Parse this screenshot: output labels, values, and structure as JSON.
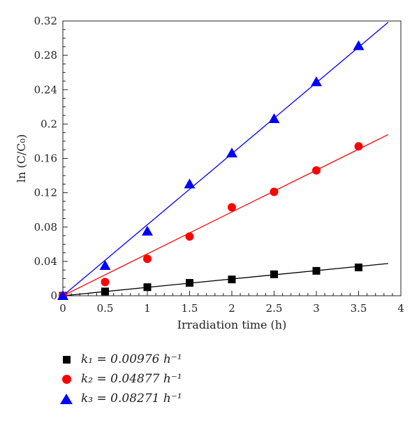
{
  "chart_data": {
    "type": "scatter",
    "xlabel": "Irradiation time (h)",
    "ylabel": "ln (C/C₀)",
    "xlim": [
      0,
      4
    ],
    "ylim": [
      0,
      0.32
    ],
    "xticks": [
      0,
      0.5,
      1,
      1.5,
      2,
      2.5,
      3,
      3.5,
      4
    ],
    "xtick_labels": [
      "0",
      "0.5",
      "1",
      "1.5",
      "2",
      "2.5",
      "3",
      "3.5",
      "4"
    ],
    "yticks": [
      0,
      0.04,
      0.08,
      0.12,
      0.16,
      0.2,
      0.24,
      0.28,
      0.32
    ],
    "ytick_labels": [
      "0",
      "0.04",
      "0.08",
      "0.12",
      "0.16",
      "0.2",
      "0.24",
      "0.28",
      "0.32"
    ],
    "series": [
      {
        "name": "k₁ = 0.00976 h⁻¹",
        "marker": "square",
        "color": "#000000",
        "x": [
          0,
          0.5,
          1,
          1.5,
          2,
          2.5,
          3,
          3.5
        ],
        "y": [
          0,
          0.005,
          0.01,
          0.015,
          0.019,
          0.025,
          0.029,
          0.033
        ],
        "fit_slope": 0.00976,
        "fit_x_end": 3.85
      },
      {
        "name": "k₂ = 0.04877 h⁻¹",
        "marker": "circle",
        "color": "#ff0000",
        "x": [
          0,
          0.5,
          1,
          1.5,
          2,
          2.5,
          3,
          3.5
        ],
        "y": [
          0,
          0.016,
          0.043,
          0.069,
          0.103,
          0.121,
          0.146,
          0.174
        ],
        "fit_slope": 0.04877,
        "fit_x_end": 3.85
      },
      {
        "name": "k₃ = 0.08271 h⁻¹",
        "marker": "triangle",
        "color": "#0000ff",
        "x": [
          0,
          0.5,
          1,
          1.5,
          2,
          2.5,
          3,
          3.5
        ],
        "y": [
          0,
          0.035,
          0.075,
          0.13,
          0.166,
          0.206,
          0.249,
          0.291
        ],
        "fit_slope": 0.08271,
        "fit_x_end": 3.85
      }
    ],
    "legend_position": "bottom-left"
  }
}
